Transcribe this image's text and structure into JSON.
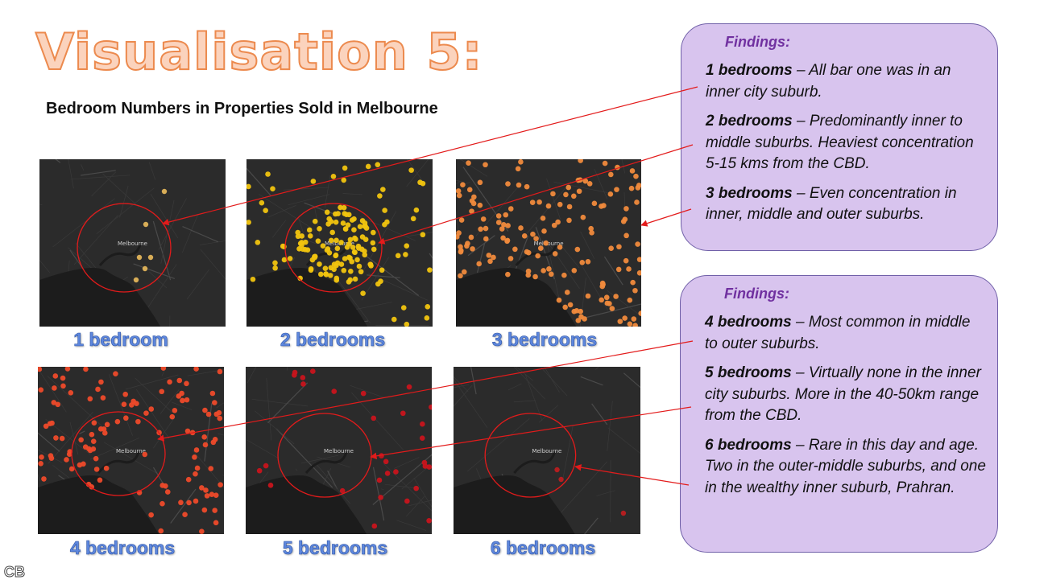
{
  "title": "Visualisation 5:",
  "subtitle": "Bedroom Numbers in Properties Sold in Melbourne",
  "map_label": "Melbourne",
  "maps": [
    {
      "caption": "1 bedroom",
      "dot_color": "#e2b45a",
      "count": 6
    },
    {
      "caption": "2 bedrooms",
      "dot_color": "#f1c40f",
      "count": 150
    },
    {
      "caption": "3 bedrooms",
      "dot_color": "#f08a3c",
      "count": 150
    },
    {
      "caption": "4 bedrooms",
      "dot_color": "#ee4a2a",
      "count": 115
    },
    {
      "caption": "5 bedrooms",
      "dot_color": "#c8141c",
      "count": 30
    },
    {
      "caption": "6 bedrooms",
      "dot_color": "#bb1d20",
      "count": 3
    }
  ],
  "findings_top": {
    "heading": "Findings:",
    "items": [
      {
        "label": "1 bedrooms",
        "text": " – All bar one was in an inner city suburb."
      },
      {
        "label": "2 bedrooms",
        "text": " – Predominantly inner to middle suburbs. Heaviest concentration 5-15 kms from the CBD."
      },
      {
        "label": "3 bedrooms",
        "text": " – Even concentration in inner, middle and outer suburbs."
      }
    ]
  },
  "findings_bottom": {
    "heading": "Findings:",
    "items": [
      {
        "label": "4 bedrooms",
        "text": " – Most common in middle to outer suburbs."
      },
      {
        "label": "5 bedrooms",
        "text": " – Virtually none in the inner city suburbs. More in the 40-50km range from the CBD."
      },
      {
        "label": "6 bedrooms",
        "text": " – Rare in this day and age. Two in the outer-middle suburbs, and one in the wealthy inner suburb, Prahran."
      }
    ]
  },
  "footer_mark": "CB",
  "colors": {
    "circle": "#e31b1b",
    "arrow": "#e31b1b",
    "box_fill": "#d8c4ee",
    "heading": "#7030a0"
  }
}
